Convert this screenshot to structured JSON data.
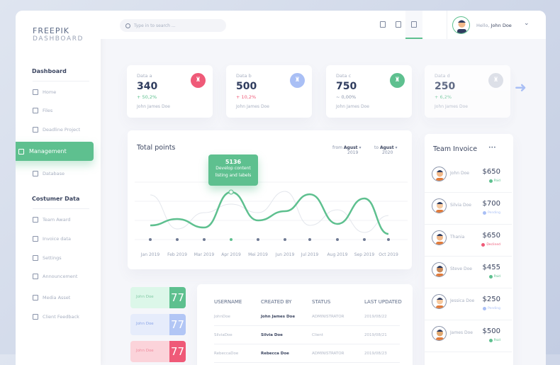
{
  "brand": {
    "line1": "FREEPIK",
    "line2": "DASHBOARD"
  },
  "sidebar": {
    "section1": "Dashboard",
    "items1": [
      {
        "label": "Home",
        "icon": "bank-icon"
      },
      {
        "label": "Files",
        "icon": "files-icon"
      },
      {
        "label": "Deadline Project",
        "icon": "calendar-icon"
      }
    ],
    "active": {
      "label": "Management",
      "icon": "management-icon"
    },
    "database": {
      "label": "Database",
      "icon": "database-icon"
    },
    "section2": "Costumer Data",
    "items2": [
      {
        "label": "Team Award",
        "icon": "trophy-icon"
      },
      {
        "label": "Invoice data",
        "icon": "invoice-icon"
      },
      {
        "label": "Settings",
        "icon": "sliders-icon"
      },
      {
        "label": "Announcement",
        "icon": "megaphone-icon"
      },
      {
        "label": "Media Asset",
        "icon": "media-icon"
      },
      {
        "label": "Client Feedback",
        "icon": "chat-icon"
      }
    ]
  },
  "topbar": {
    "search_placeholder": "Type in to search ...",
    "greeting": "Hello,",
    "user": "John Doe"
  },
  "stats": [
    {
      "label": "Data a",
      "value": "340",
      "change": "+ 50,2%",
      "owner": "John James Doe",
      "color": "#ef5a78"
    },
    {
      "label": "Data b",
      "value": "500",
      "change": "+ 10,2%",
      "owner": "John James Doe",
      "color": "#a9bff5"
    },
    {
      "label": "Data c",
      "value": "750",
      "change": "~ 0,00%",
      "owner": "John James Doe",
      "color": "#5ec08f"
    },
    {
      "label": "Data d",
      "value": "250",
      "change": "+ 6,2%",
      "owner": "John James Doe",
      "color": "#d5d9e2"
    }
  ],
  "colors": {
    "accent": "#5ec08f",
    "up": "#5ec08f",
    "down": "#ef5a78",
    "neutral": "#8a94aa"
  },
  "chart": {
    "title": "Total points",
    "from_label": "from",
    "from_month": "Agust",
    "from_year": "2019",
    "to_label": "to",
    "to_month": "Agust",
    "to_year": "2020",
    "tooltip_value": "5136",
    "tooltip_line1": "Develop content",
    "tooltip_line2": "listing and labels"
  },
  "chart_data": {
    "type": "line",
    "title": "Total points",
    "categories": [
      "Jan 2019",
      "Feb 2019",
      "Mar 2019",
      "Apr 2019",
      "Mei 2019",
      "Jun 2019",
      "Jul 2019",
      "Aug 2019",
      "Sep 2019",
      "Oct 2019"
    ],
    "series": [
      {
        "color": "#5ec08f",
        "values": [
          1530,
          2220,
          1300,
          5136,
          2070,
          3070,
          4900,
          1690,
          4450,
          610
        ]
      },
      {
        "color": "#e3e6ec",
        "values": [
          4830,
          1150,
          2910,
          3830,
          2910,
          5210,
          1530,
          3220,
          770,
          2600
        ]
      }
    ],
    "highlight": {
      "category": "Apr 2019",
      "value": 5136
    },
    "grid": true
  },
  "invoice": {
    "title": "Team Invoice",
    "more": "•••",
    "rows": [
      {
        "name": "John Doe",
        "amount": "$650",
        "status": "Paid",
        "color": "#5ec08f"
      },
      {
        "name": "Silvia Doe",
        "amount": "$700",
        "status": "Pending",
        "color": "#a9bff5"
      },
      {
        "name": "Thania",
        "amount": "$650",
        "status": "Declined",
        "color": "#ef5a78"
      },
      {
        "name": "Steve Doe",
        "amount": "$455",
        "status": "Paid",
        "color": "#5ec08f"
      },
      {
        "name": "Jessica Doe",
        "amount": "$250",
        "status": "Pending",
        "color": "#a9bff5"
      },
      {
        "name": "James Doe",
        "amount": "$500",
        "status": "Paid",
        "color": "#5ec08f"
      }
    ]
  },
  "mini": [
    {
      "name": "John Doe",
      "value": "77",
      "bg": "#dcf7e9",
      "fg": "#5ec08f",
      "text": "#7fc9a3"
    },
    {
      "name": "John Doe",
      "value": "77",
      "bg": "#e6ecfb",
      "fg": "#b2c6f5",
      "text": "#8aa5e8"
    },
    {
      "name": "John Doe",
      "value": "77",
      "bg": "#fbd3da",
      "fg": "#ef5a78",
      "text": "#f08a9c"
    }
  ],
  "table": {
    "headers": [
      "USERNAME",
      "CREATED BY",
      "STATUS",
      "LAST UPDATED"
    ],
    "rows": [
      [
        "JohnDoe",
        "John James Doe",
        "ADMINISTRATOR",
        "2019/08/22"
      ],
      [
        "SilviaDoe",
        "Silvia Doe",
        "Client",
        "2019/08/21"
      ],
      [
        "RebeccaDoe",
        "Rebecca Doe",
        "ADMINISTRATOR",
        "2019/08/23"
      ]
    ]
  }
}
